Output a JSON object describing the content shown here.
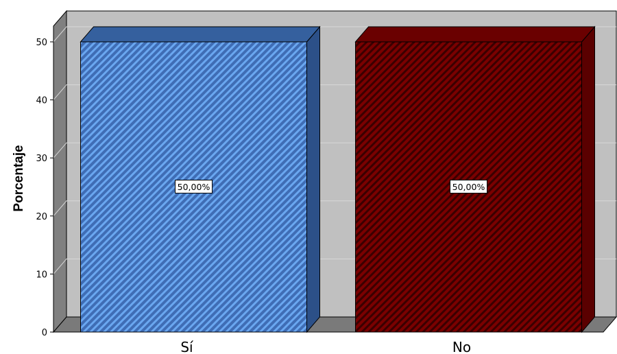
{
  "chart_data": {
    "type": "bar",
    "title": "",
    "xlabel": "",
    "ylabel": "Porcentaje",
    "ylim": [
      0,
      50
    ],
    "yticks": [
      0,
      10,
      20,
      30,
      40,
      50
    ],
    "grid": true,
    "three_d": true,
    "categories": [
      "Sí",
      "No"
    ],
    "values": [
      50,
      50
    ],
    "data_labels": [
      "50,00%",
      "50,00%"
    ],
    "colors": {
      "bars": [
        "#3F6DB5",
        "#7A0000"
      ],
      "bar_tops": [
        "#35609E",
        "#6A0000"
      ],
      "bar_sides": [
        "#2C5088",
        "#5A0000"
      ],
      "hatch": [
        "#6AA7F0",
        "#3A0000"
      ],
      "plot_background": "#C0C0C0",
      "floor": "#7A7A7A",
      "walls": "#808080",
      "gridline": "#D8D8D8"
    }
  }
}
